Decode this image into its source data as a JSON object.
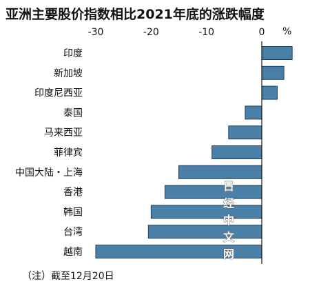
{
  "chart_data": {
    "type": "bar",
    "orientation": "horizontal",
    "title": "亚洲主要股价指数相比2021年底的涨跌幅度",
    "unit": "%",
    "categories": [
      "印度",
      "新加坡",
      "印度尼西亚",
      "泰国",
      "马来西亚",
      "菲律宾",
      "中国大陆・上海",
      "香港",
      "韩国",
      "台湾",
      "越南"
    ],
    "values": [
      5.5,
      4.0,
      2.8,
      -3.0,
      -6.0,
      -9.0,
      -15.0,
      -17.5,
      -20.0,
      -20.5,
      -30.0
    ],
    "xlim": [
      -30,
      5
    ],
    "xticks": [
      -30,
      -20,
      -10,
      0
    ],
    "xtick_labels": [
      "-30",
      "-20",
      "-10",
      "0"
    ],
    "grid": false,
    "bar_color": "#4a80a8",
    "bar_edge_color": "#1f3f5c",
    "footnote": "（注）截至12月20日",
    "watermark": [
      "日",
      "经",
      "中",
      "文",
      "网"
    ]
  }
}
